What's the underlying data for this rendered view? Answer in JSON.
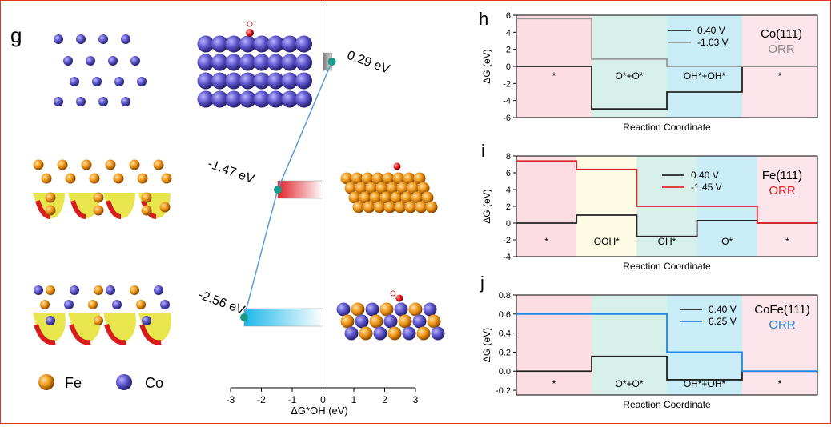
{
  "panel_letters": {
    "g": "g",
    "h": "h",
    "i": "i",
    "j": "j"
  },
  "legend_atoms": [
    {
      "label": "Fe",
      "color": "#e8900f"
    },
    {
      "label": "Co",
      "color": "#5a52b8"
    }
  ],
  "chart_data": [
    {
      "type": "bar",
      "panel": "g",
      "xlabel": "ΔG*OH (eV)",
      "xlim": [
        -3,
        3
      ],
      "xticks": [
        -3,
        -2,
        -1,
        0,
        1,
        2,
        3
      ],
      "values": [
        0.29,
        -1.47,
        -2.56
      ],
      "labels": [
        "0.29 eV",
        "-1.47 eV",
        "-2.56 eV"
      ],
      "colors": [
        "#888888",
        "#e0242c",
        "#1cb8ea"
      ],
      "line_color": "#5b9bd5",
      "dot_color": "#1a9a8a"
    },
    {
      "type": "line",
      "panel": "h",
      "xlabel": "Reaction Coordinate",
      "ylabel": "ΔG (eV)",
      "ylim": [
        -6,
        6
      ],
      "yticks": [
        -6,
        -4,
        -2,
        0,
        2,
        4,
        6
      ],
      "system": "Co(111)",
      "reaction": "ORR",
      "reaction_color": "#8c8c8c",
      "steps": [
        "*",
        "O*+O*",
        "OH*+OH*",
        "*"
      ],
      "bands": [
        {
          "from": 0,
          "to": 1,
          "color": "#fbdde3"
        },
        {
          "from": 1,
          "to": 2,
          "color": "#d7f1ea"
        },
        {
          "from": 2,
          "to": 3,
          "color": "#c9ecf6"
        },
        {
          "from": 3,
          "to": 4,
          "color": "#fbe4ea"
        }
      ],
      "series": [
        {
          "name": "0.40 V",
          "color": "#222222",
          "values": [
            0,
            -4.98,
            -3.0,
            0
          ]
        },
        {
          "name": "-1.03 V",
          "color": "#999999",
          "values": [
            5.6,
            0.86,
            0.0,
            0
          ]
        }
      ]
    },
    {
      "type": "line",
      "panel": "i",
      "xlabel": "Reaction Coordinate",
      "ylabel": "ΔG (eV)",
      "ylim": [
        -4,
        8
      ],
      "yticks": [
        -4,
        -2,
        0,
        2,
        4,
        6,
        8
      ],
      "system": "Fe(111)",
      "reaction": "ORR",
      "reaction_color": "#e0242c",
      "steps": [
        "*",
        "OOH*",
        "OH*",
        "O*",
        "*"
      ],
      "bands": [
        {
          "from": 0,
          "to": 1,
          "color": "#fbdde3"
        },
        {
          "from": 1,
          "to": 2,
          "color": "#fdfbe4"
        },
        {
          "from": 2,
          "to": 3,
          "color": "#d7f1ea"
        },
        {
          "from": 3,
          "to": 4,
          "color": "#c9ecf6"
        },
        {
          "from": 4,
          "to": 5,
          "color": "#fbe4ea"
        }
      ],
      "series": [
        {
          "name": "0.40 V",
          "color": "#222222",
          "values": [
            0,
            0.95,
            -1.6,
            0.3,
            0
          ]
        },
        {
          "name": "-1.45 V",
          "color": "#e0242c",
          "values": [
            7.4,
            6.4,
            2.0,
            2.0,
            0
          ]
        }
      ]
    },
    {
      "type": "line",
      "panel": "j",
      "xlabel": "Reaction Coordinate",
      "ylabel": "ΔG (eV)",
      "ylim": [
        -0.25,
        0.8
      ],
      "yticks": [
        -0.2,
        0.0,
        0.2,
        0.4,
        0.6,
        0.8
      ],
      "ytick_labels": [
        "-0.2",
        "0.0",
        "0.2",
        "0.4",
        "0.6",
        "0.8"
      ],
      "system": "CoFe(111)",
      "reaction": "ORR",
      "reaction_color": "#1e88e5",
      "steps": [
        "*",
        "O*+O*",
        "OH*+OH*",
        "*"
      ],
      "bands": [
        {
          "from": 0,
          "to": 1,
          "color": "#fbdde3"
        },
        {
          "from": 1,
          "to": 2,
          "color": "#d7f1ea"
        },
        {
          "from": 2,
          "to": 3,
          "color": "#c9ecf6"
        },
        {
          "from": 3,
          "to": 4,
          "color": "#fbe4ea"
        }
      ],
      "series": [
        {
          "name": "0.40 V",
          "color": "#222222",
          "values": [
            0,
            0.155,
            -0.09,
            0
          ]
        },
        {
          "name": "0.25 V",
          "color": "#1e88e5",
          "values": [
            0.6,
            0.6,
            0.2,
            0
          ]
        }
      ]
    }
  ]
}
